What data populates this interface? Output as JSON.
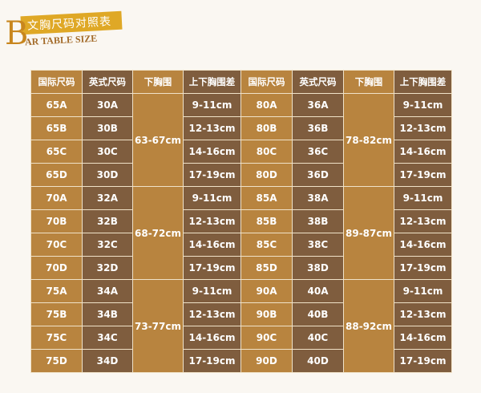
{
  "title": {
    "letter": "B",
    "cn": "文胸尺码对照表",
    "en": "AR TABLE SIZE"
  },
  "headers": [
    "国际尺码",
    "英式尺码",
    "下胸围",
    "上下胸围差",
    "国际尺码",
    "英式尺码",
    "下胸围",
    "上下胸围差"
  ],
  "colors": {
    "light": "#b8843f",
    "dark": "#7f5d3e",
    "accent": "#dfa826"
  },
  "diffs": [
    "9-11cm",
    "12-13cm",
    "14-16cm",
    "17-19cm"
  ],
  "left_groups": [
    {
      "intl": [
        "65A",
        "65B",
        "65C",
        "65D"
      ],
      "uk": [
        "30A",
        "30B",
        "30C",
        "30D"
      ],
      "under": "63-67cm"
    },
    {
      "intl": [
        "70A",
        "70B",
        "70C",
        "70D"
      ],
      "uk": [
        "32A",
        "32B",
        "32C",
        "32D"
      ],
      "under": "68-72cm"
    },
    {
      "intl": [
        "75A",
        "75B",
        "75C",
        "75D"
      ],
      "uk": [
        "34A",
        "34B",
        "34C",
        "34D"
      ],
      "under": "73-77cm"
    }
  ],
  "right_groups": [
    {
      "intl": [
        "80A",
        "80B",
        "80C",
        "80D"
      ],
      "uk": [
        "36A",
        "36B",
        "36C",
        "36D"
      ],
      "under": "78-82cm"
    },
    {
      "intl": [
        "85A",
        "85B",
        "85C",
        "85D"
      ],
      "uk": [
        "38A",
        "38B",
        "38C",
        "38D"
      ],
      "under": "89-87cm"
    },
    {
      "intl": [
        "90A",
        "90B",
        "90C",
        "90D"
      ],
      "uk": [
        "40A",
        "40B",
        "40C",
        "40D"
      ],
      "under": "88-92cm"
    }
  ]
}
